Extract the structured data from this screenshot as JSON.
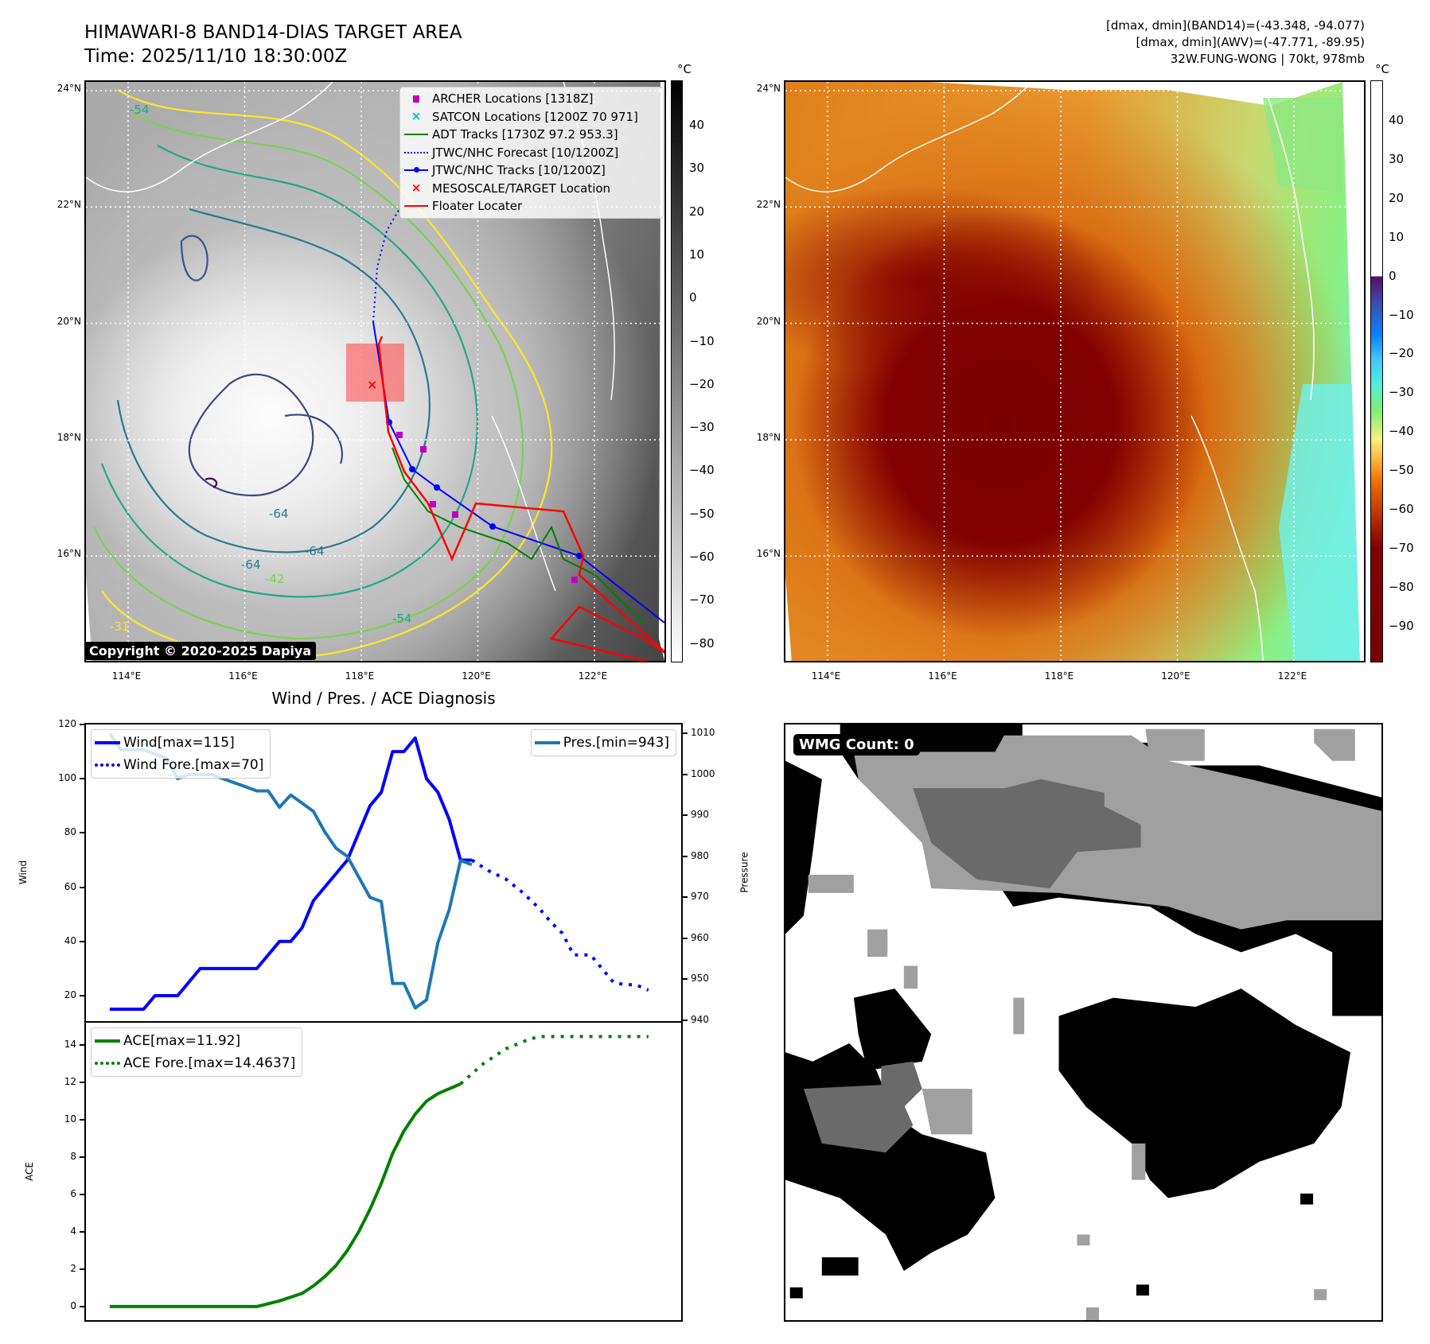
{
  "header": {
    "title": "HIMAWARI-8 BAND14-DIAS TARGET AREA",
    "time": "Time: 2025/11/10 18:30:00Z",
    "info_band14": "[dmax, dmin](BAND14)=(-43.348, -94.077)",
    "info_awv": "[dmax, dmin](AWV)=(-47.771, -89.95)",
    "info_storm": "32W.FUNG-WONG | 70kt, 978mb"
  },
  "maps": {
    "lon_ticks": [
      "114°E",
      "116°E",
      "118°E",
      "120°E",
      "122°E"
    ],
    "lat_ticks": [
      "24°N",
      "22°N",
      "20°N",
      "18°N",
      "16°N"
    ],
    "copyright": "Copyright © 2020-2025 Dapiya",
    "contour_labels": [
      "-64",
      "-64",
      "-64",
      "-54",
      "-54",
      "-31",
      "-42"
    ],
    "left_colorbar": {
      "unit": "°C",
      "ticks": [
        "40",
        "30",
        "20",
        "10",
        "0",
        "−10",
        "−20",
        "−30",
        "−40",
        "−50",
        "−60",
        "−70",
        "−80"
      ]
    },
    "right_colorbar": {
      "unit": "°C",
      "ticks": [
        "40",
        "30",
        "20",
        "10",
        "0",
        "−10",
        "−20",
        "−30",
        "−40",
        "−50",
        "−60",
        "−70",
        "−80",
        "−90"
      ]
    },
    "legend": [
      {
        "label": "ARCHER Locations [1318Z]",
        "color": "#c000c0",
        "symbol": "square"
      },
      {
        "label": "SATCON Locations [1200Z 70 971]",
        "color": "#00bfbf",
        "symbol": "x"
      },
      {
        "label": "ADT Tracks [1730Z 97.2 953.3]",
        "color": "#008000",
        "symbol": "line"
      },
      {
        "label": "JTWC/NHC Forecast [10/1200Z]",
        "color": "#0000ff",
        "symbol": "dotted"
      },
      {
        "label": "JTWC/NHC Tracks [10/1200Z]",
        "color": "#0000ff",
        "symbol": "line-dot"
      },
      {
        "label": "MESOSCALE/TARGET Location",
        "color": "#ff0000",
        "symbol": "x"
      },
      {
        "label": "Floater Locater",
        "color": "#ff0000",
        "symbol": "line"
      }
    ]
  },
  "wmg": {
    "label": "WMG Count: 0"
  },
  "chart_data": [
    {
      "type": "line",
      "title": "Wind / Pres. / ACE Diagnosis",
      "xlim": [
        -2.1,
        50.5
      ],
      "ylabel": "Wind",
      "ylim": [
        10.6,
        120
      ],
      "yticks": [
        20,
        40,
        60,
        80,
        100,
        120
      ],
      "y2label": "Pressure",
      "y2lim": [
        939.8,
        1012.2
      ],
      "y2ticks": [
        940,
        950,
        960,
        970,
        980,
        990,
        1000,
        1010
      ],
      "series": [
        {
          "name": "Wind[max=115]",
          "axis": "left",
          "color": "#0000ff",
          "style": "solid",
          "x": [
            0,
            3,
            4,
            6,
            8,
            13,
            15,
            16,
            17,
            18,
            21,
            23,
            24,
            25,
            26,
            27,
            28,
            29,
            30,
            31,
            32
          ],
          "y": [
            15,
            15,
            20,
            20,
            30,
            30,
            40,
            40,
            45,
            55,
            70,
            90,
            95,
            110,
            110,
            115,
            100,
            95,
            85,
            70,
            70
          ]
        },
        {
          "name": "Wind Fore.[max=70]",
          "axis": "left",
          "color": "#0000ff",
          "style": "dotted",
          "x": [
            32,
            33.5,
            35,
            36.5,
            38,
            39,
            40,
            41,
            42.5,
            43.5,
            44.5,
            45.5,
            46.5,
            47.6
          ],
          "y": [
            70,
            66,
            63,
            58,
            52,
            47,
            43,
            35,
            35,
            30,
            25,
            24,
            24,
            22
          ]
        },
        {
          "name": "Pres.[min=943]",
          "axis": "right",
          "color": "#1f77b4",
          "style": "solid",
          "x": [
            0,
            1,
            3,
            4,
            5,
            6,
            7,
            9,
            11,
            12,
            13,
            14,
            15,
            16,
            18,
            19,
            20,
            21,
            22,
            23,
            24,
            25,
            26,
            27,
            28,
            29,
            30,
            31,
            32
          ],
          "y": [
            1010,
            1006,
            1006,
            1005,
            1004,
            999,
            1000,
            1000,
            998,
            997,
            996,
            996,
            992,
            995,
            991,
            986,
            982,
            980,
            975,
            970,
            969,
            949,
            949,
            943,
            945,
            959,
            967,
            979,
            978
          ]
        }
      ]
    },
    {
      "type": "line",
      "xlim": [
        -2.1,
        50.5
      ],
      "ylabel": "ACE",
      "ylim": [
        -0.73,
        15.2
      ],
      "yticks": [
        0,
        2,
        4,
        6,
        8,
        10,
        12,
        14
      ],
      "series": [
        {
          "name": "ACE[max=11.92]",
          "color": "#008000",
          "style": "solid",
          "x": [
            0,
            13,
            15,
            17,
            18,
            19,
            20,
            21,
            22,
            23,
            24,
            25,
            26,
            27,
            28,
            29,
            31
          ],
          "y": [
            0,
            0,
            0.3,
            0.7,
            1.1,
            1.6,
            2.2,
            3.0,
            4.0,
            5.2,
            6.6,
            8.2,
            9.4,
            10.3,
            11.0,
            11.4,
            11.92
          ]
        },
        {
          "name": "ACE Fore.[max=14.4637]",
          "color": "#008000",
          "style": "dotted",
          "x": [
            31,
            33,
            35,
            37,
            38,
            47.6
          ],
          "y": [
            11.92,
            13.0,
            13.8,
            14.3,
            14.46,
            14.46
          ]
        }
      ]
    }
  ]
}
